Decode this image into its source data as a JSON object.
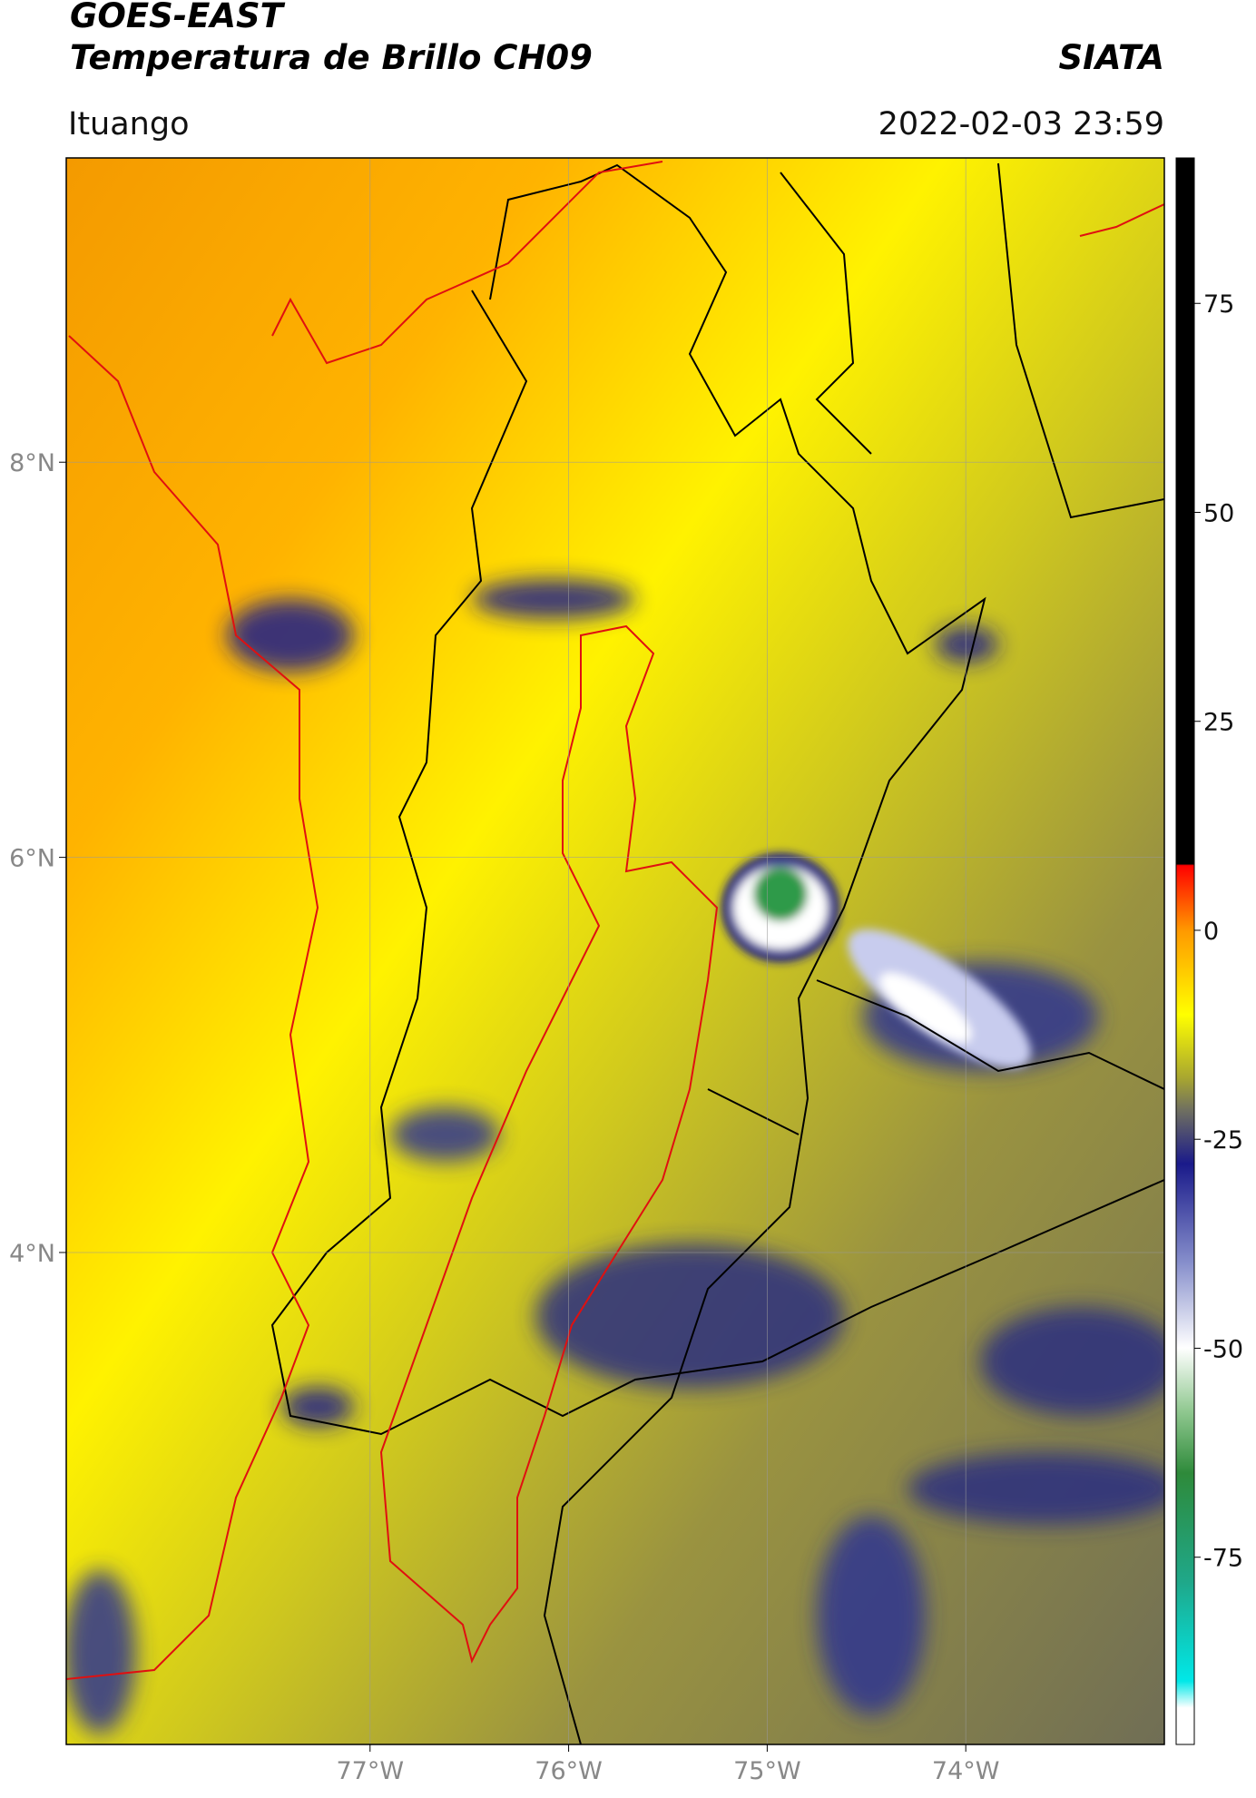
{
  "header": {
    "title": "GOES-EAST",
    "subtitle": "Temperatura de Brillo CH09",
    "brand": "SIATA",
    "location": "Ituango",
    "timestamp": "2022-02-03 23:59"
  },
  "map": {
    "type": "map",
    "xlim": [
      -78.53,
      -73.0
    ],
    "ylim": [
      1.51,
      9.54
    ],
    "xticks": [
      {
        "value": -77,
        "label": "77°W"
      },
      {
        "value": -76,
        "label": "76°W"
      },
      {
        "value": -75,
        "label": "75°W"
      },
      {
        "value": -74,
        "label": "74°W"
      }
    ],
    "yticks": [
      {
        "value": 4,
        "label": "4°N"
      },
      {
        "value": 6,
        "label": "6°N"
      },
      {
        "value": 8,
        "label": "8°N"
      }
    ],
    "grid": true
  },
  "colorbar": {
    "clim": [
      -97.4,
      92.4
    ],
    "ticks": [
      -75,
      -50,
      -25,
      0,
      25,
      50,
      75
    ]
  }
}
